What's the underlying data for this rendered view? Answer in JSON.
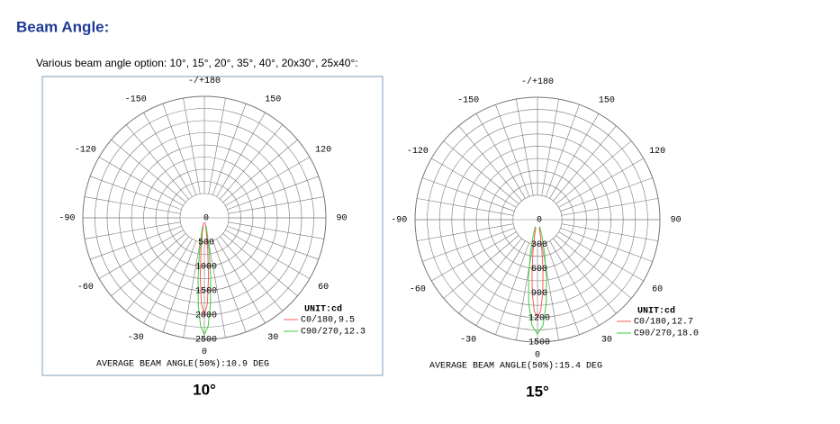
{
  "header": {
    "title": "Beam Angle:",
    "subtitle": "Various beam angle option: 10°, 15°, 20°, 35°, 40°, 20x30°, 25x40°:"
  },
  "chart_data": [
    {
      "type": "polar",
      "frame": true,
      "angle_ticks": [
        {
          "value": 180,
          "label": "-/+180"
        },
        150,
        120,
        90,
        60,
        30,
        0,
        -30,
        -60,
        -90,
        -120,
        -150
      ],
      "rlim": [
        0,
        2500
      ],
      "rticks": [
        0,
        500,
        1000,
        1500,
        2000,
        2500
      ],
      "unit": "UNIT:cd",
      "series": [
        {
          "name": "C0/180,9.5",
          "color": "#ff5a5a",
          "angles": [
            -10,
            -8,
            -6,
            -4,
            -2,
            0,
            2,
            4,
            6,
            8,
            10
          ],
          "values": [
            93,
            280,
            662,
            1224,
            1768,
            2000,
            1768,
            1224,
            662,
            280,
            93
          ]
        },
        {
          "name": "C90/270,12.3",
          "color": "#3ccc3c",
          "angles": [
            -12,
            -10,
            -8,
            -6,
            -4,
            -2,
            0,
            2,
            4,
            6,
            8,
            10,
            12
          ],
          "values": [
            171,
            385,
            745,
            1240,
            1790,
            2230,
            2400,
            2230,
            1790,
            1240,
            745,
            385,
            171
          ]
        }
      ],
      "annotation": "AVERAGE BEAM ANGLE(50%):10.9 DEG",
      "caption": "10°"
    },
    {
      "type": "polar",
      "frame": false,
      "angle_ticks": [
        {
          "value": 180,
          "label": "-/+180"
        },
        150,
        120,
        90,
        60,
        30,
        0,
        -30,
        -60,
        -90,
        -120,
        -150
      ],
      "rlim": [
        0,
        1500
      ],
      "rticks": [
        0,
        300,
        600,
        900,
        1200,
        1500
      ],
      "unit": "UNIT:cd",
      "series": [
        {
          "name": "C0/180,12.7",
          "color": "#ff5a5a",
          "angles": [
            -12,
            -10,
            -8,
            -6,
            -4,
            -2,
            0,
            2,
            4,
            6,
            8,
            10,
            12
          ],
          "values": [
            101,
            215,
            399,
            646,
            912,
            1120,
            1200,
            1120,
            912,
            646,
            399,
            215,
            101
          ]
        },
        {
          "name": "C90/270,18.0",
          "color": "#3ccc3c",
          "angles": [
            -18,
            -15,
            -12,
            -9,
            -6,
            -3,
            0,
            3,
            6,
            9,
            12,
            15,
            18
          ],
          "values": [
            88,
            204,
            409,
            700,
            1029,
            1296,
            1400,
            1296,
            1029,
            700,
            409,
            204,
            88
          ]
        }
      ],
      "annotation": "AVERAGE BEAM ANGLE(50%):15.4 DEG",
      "caption": "15°"
    }
  ]
}
